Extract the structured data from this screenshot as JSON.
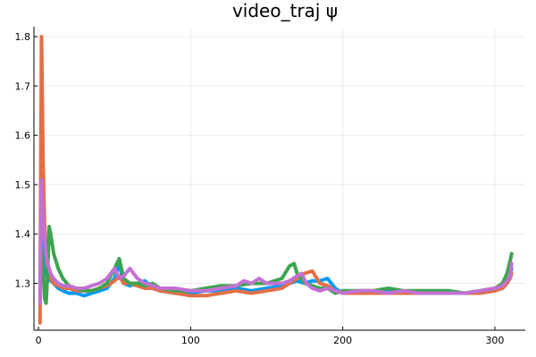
{
  "chart_data": {
    "type": "line",
    "title": "video_traj ψ",
    "xlabel": "",
    "ylabel": "",
    "xlim": [
      -3,
      320
    ],
    "ylim": [
      1.205,
      1.82
    ],
    "x_ticks": [
      0,
      100,
      200,
      300
    ],
    "x_tick_labels": [
      "0",
      "100",
      "200",
      "300"
    ],
    "y_ticks": [
      1.3,
      1.4,
      1.5,
      1.6,
      1.7,
      1.8
    ],
    "y_tick_labels": [
      "1.3",
      "1.4",
      "1.5",
      "1.6",
      "1.7",
      "1.8"
    ],
    "grid": true,
    "legend": "none",
    "series": [
      {
        "color": "#009AFA",
        "x": [
          1,
          2,
          3,
          4,
          5,
          6,
          8,
          10,
          13,
          16,
          20,
          25,
          30,
          35,
          40,
          45,
          50,
          53,
          56,
          60,
          65,
          70,
          75,
          80,
          90,
          100,
          110,
          120,
          130,
          140,
          150,
          160,
          165,
          170,
          175,
          180,
          185,
          190,
          195,
          200,
          210,
          220,
          230,
          240,
          250,
          260,
          270,
          280,
          290,
          300,
          305,
          308,
          310,
          311
        ],
        "y": [
          1.3,
          1.41,
          1.37,
          1.34,
          1.32,
          1.31,
          1.305,
          1.3,
          1.29,
          1.285,
          1.28,
          1.28,
          1.275,
          1.28,
          1.285,
          1.29,
          1.31,
          1.34,
          1.3,
          1.295,
          1.3,
          1.305,
          1.29,
          1.285,
          1.28,
          1.28,
          1.285,
          1.285,
          1.29,
          1.285,
          1.29,
          1.295,
          1.3,
          1.305,
          1.3,
          1.305,
          1.305,
          1.31,
          1.29,
          1.28,
          1.28,
          1.28,
          1.285,
          1.28,
          1.28,
          1.28,
          1.28,
          1.28,
          1.28,
          1.285,
          1.29,
          1.3,
          1.315,
          1.33
        ]
      },
      {
        "color": "#E26F46",
        "x": [
          1,
          2,
          3,
          4,
          5,
          6,
          8,
          10,
          13,
          16,
          20,
          25,
          30,
          35,
          40,
          45,
          50,
          53,
          56,
          60,
          65,
          70,
          75,
          80,
          90,
          100,
          110,
          120,
          130,
          140,
          150,
          160,
          165,
          170,
          175,
          180,
          185,
          190,
          195,
          200,
          210,
          220,
          230,
          240,
          250,
          260,
          270,
          280,
          290,
          300,
          305,
          308,
          310,
          311
        ],
        "y": [
          1.22,
          1.8,
          1.55,
          1.42,
          1.36,
          1.33,
          1.31,
          1.3,
          1.295,
          1.29,
          1.29,
          1.285,
          1.285,
          1.285,
          1.29,
          1.295,
          1.305,
          1.315,
          1.3,
          1.3,
          1.295,
          1.29,
          1.29,
          1.285,
          1.28,
          1.275,
          1.275,
          1.28,
          1.285,
          1.28,
          1.285,
          1.29,
          1.3,
          1.31,
          1.32,
          1.325,
          1.3,
          1.295,
          1.285,
          1.28,
          1.28,
          1.28,
          1.28,
          1.28,
          1.28,
          1.28,
          1.28,
          1.28,
          1.28,
          1.285,
          1.29,
          1.3,
          1.31,
          1.32
        ]
      },
      {
        "color": "#3DA44E",
        "x": [
          1,
          2,
          3,
          4,
          5,
          6,
          7,
          8,
          10,
          13,
          16,
          20,
          25,
          30,
          35,
          40,
          45,
          50,
          53,
          56,
          60,
          65,
          70,
          75,
          80,
          90,
          100,
          110,
          120,
          130,
          140,
          150,
          160,
          165,
          168,
          170,
          175,
          180,
          185,
          190,
          195,
          200,
          210,
          220,
          230,
          240,
          250,
          260,
          270,
          280,
          290,
          300,
          305,
          308,
          310,
          311
        ],
        "y": [
          1.3,
          1.37,
          1.33,
          1.27,
          1.26,
          1.32,
          1.415,
          1.4,
          1.36,
          1.33,
          1.31,
          1.295,
          1.29,
          1.285,
          1.285,
          1.29,
          1.3,
          1.33,
          1.35,
          1.31,
          1.3,
          1.3,
          1.295,
          1.3,
          1.29,
          1.285,
          1.285,
          1.29,
          1.295,
          1.295,
          1.3,
          1.3,
          1.31,
          1.335,
          1.34,
          1.32,
          1.3,
          1.295,
          1.29,
          1.29,
          1.28,
          1.285,
          1.285,
          1.285,
          1.29,
          1.285,
          1.285,
          1.285,
          1.285,
          1.28,
          1.285,
          1.29,
          1.3,
          1.32,
          1.345,
          1.36
        ]
      },
      {
        "color": "#C271D2",
        "x": [
          1,
          2,
          3,
          4,
          5,
          6,
          8,
          10,
          13,
          16,
          20,
          25,
          30,
          35,
          40,
          45,
          50,
          53,
          56,
          60,
          65,
          70,
          75,
          80,
          90,
          100,
          110,
          120,
          130,
          135,
          140,
          145,
          150,
          160,
          165,
          170,
          173,
          176,
          180,
          185,
          190,
          195,
          200,
          210,
          220,
          230,
          240,
          250,
          260,
          270,
          280,
          290,
          300,
          305,
          308,
          310,
          311
        ],
        "y": [
          1.26,
          1.51,
          1.43,
          1.39,
          1.36,
          1.34,
          1.32,
          1.31,
          1.3,
          1.295,
          1.295,
          1.29,
          1.29,
          1.295,
          1.3,
          1.31,
          1.33,
          1.31,
          1.315,
          1.33,
          1.31,
          1.3,
          1.295,
          1.29,
          1.29,
          1.285,
          1.285,
          1.29,
          1.295,
          1.305,
          1.3,
          1.31,
          1.3,
          1.3,
          1.305,
          1.315,
          1.32,
          1.3,
          1.29,
          1.285,
          1.29,
          1.285,
          1.28,
          1.285,
          1.285,
          1.28,
          1.285,
          1.28,
          1.28,
          1.28,
          1.28,
          1.285,
          1.29,
          1.295,
          1.305,
          1.315,
          1.34
        ]
      }
    ]
  }
}
